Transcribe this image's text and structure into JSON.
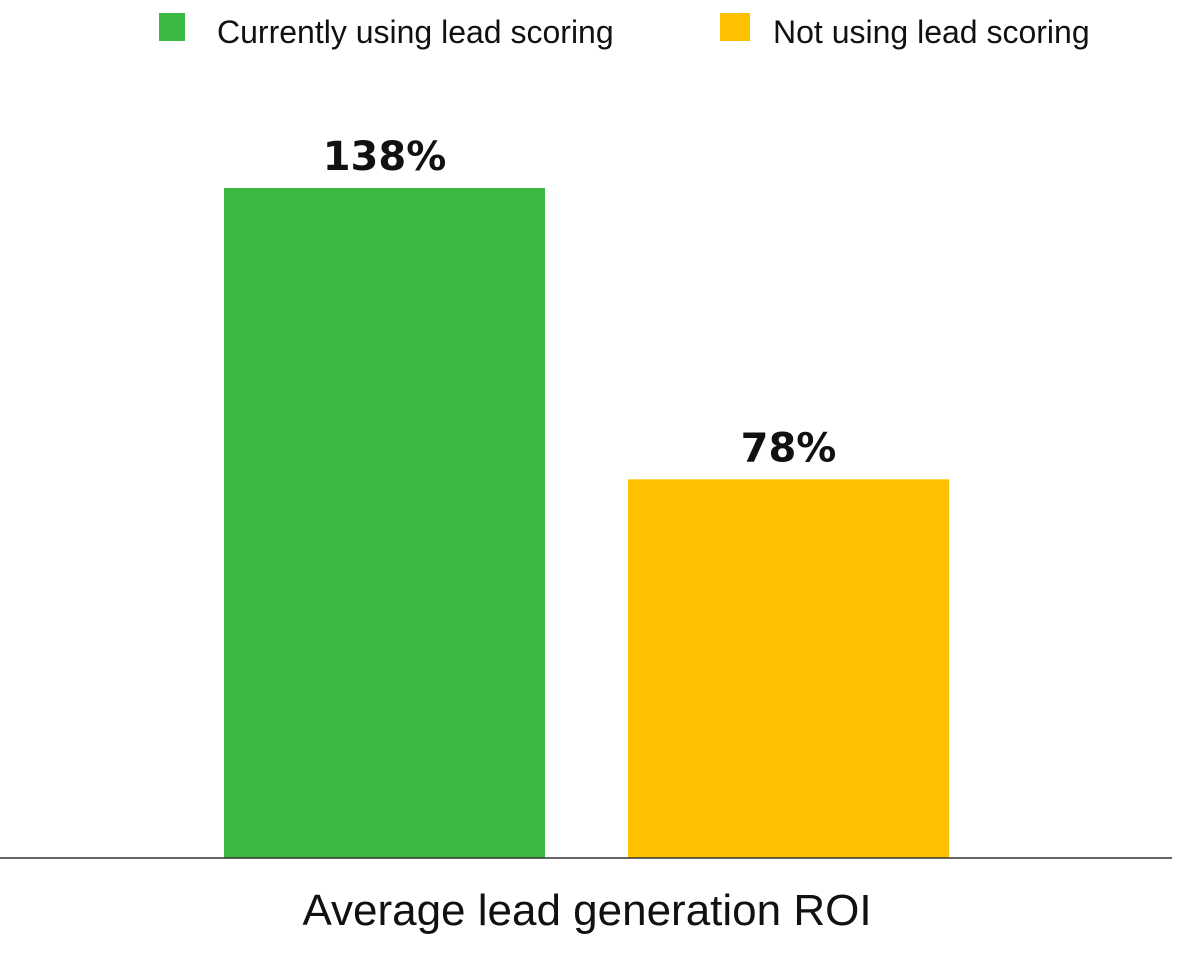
{
  "chart_data": {
    "type": "bar",
    "title": "",
    "categories": [
      "Average lead generation ROI"
    ],
    "xlabel": "Average lead generation ROI",
    "ylabel": "",
    "unit": "%",
    "grid": false,
    "legend_position": "top",
    "series": [
      {
        "name": "Currently using lead scoring",
        "values": [
          138
        ],
        "label": "138%",
        "color": "#3cb943"
      },
      {
        "name": "Not using lead scoring",
        "values": [
          78
        ],
        "label": "78%",
        "color": "#fdc100"
      }
    ],
    "ylim": [
      0,
      138
    ]
  }
}
